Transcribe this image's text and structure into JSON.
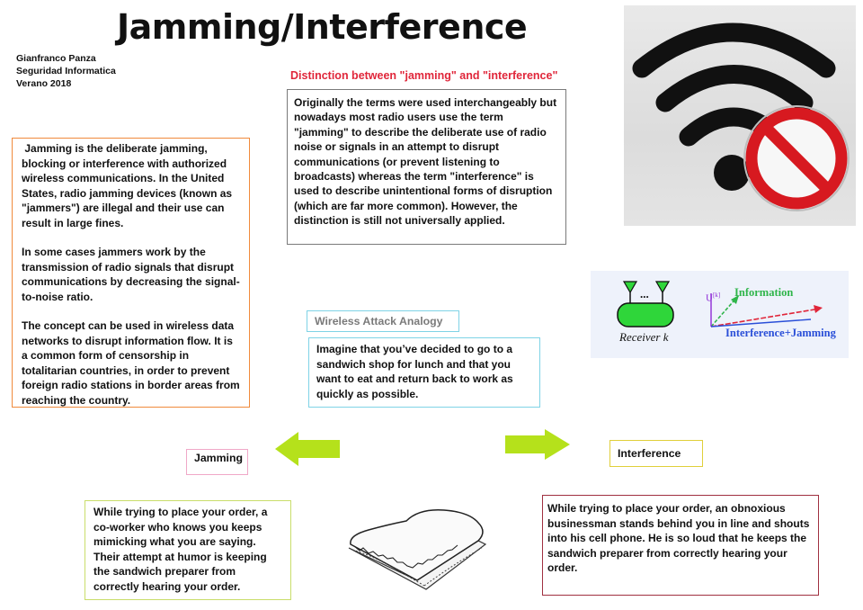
{
  "title": "Jamming/Interference",
  "author": {
    "name": "Gianfranco Panza",
    "course": "Seguridad Informatica",
    "term": "Verano 2018"
  },
  "jamming_definition": {
    "paragraphs": [
      " Jamming is the deliberate jamming, blocking or interference with authorized wireless communications. In the United States, radio jamming devices (known as \"jammers\") are illegal and their use can result in large fines.",
      "In some cases jammers work by the transmission of radio signals that disrupt communications by decreasing the signal-to-noise ratio.",
      "The concept can be used in wireless data networks to disrupt information flow. It is a common form of censorship in totalitarian countries, in order to prevent foreign radio stations in border areas from reaching the country."
    ]
  },
  "distinction": {
    "heading": "Distinction between \"jamming\" and \"interference\"",
    "body": "Originally the terms were used interchangeably but nowadays most radio users use the term \"jamming\" to describe the deliberate use of radio noise or signals in an attempt to disrupt communications (or prevent listening to broadcasts) whereas the term \"interference\" is used to describe unintentional forms of disruption (which are far more common). However, the distinction is still not universally applied."
  },
  "analogy": {
    "label": "Wireless Attack Analogy",
    "body": "Imagine that you’ve decided to go to a sandwich shop for lunch and that you want to eat and return back to work as quickly as possible."
  },
  "jamming_example": {
    "label": "Jamming",
    "body": "While trying to place your order, a co-worker who knows you keeps mimicking what you are saying. Their attempt at humor is keeping the sandwich preparer from correctly hearing your order."
  },
  "interference_example": {
    "label": "Interference",
    "body": "While trying to place your order, an obnoxious businessman stands behind you in line and shouts into his cell phone. He is so loud that he keeps the sandwich preparer from correctly hearing your order."
  },
  "diagram": {
    "receiver_label": "Receiver k",
    "receiver_dots": "...",
    "axis_label": "U",
    "axis_superscript": "[k]",
    "information_label": "Information",
    "interference_label": "Interference+Jamming"
  },
  "colors": {
    "orange_border": "#f08a3c",
    "gray_border": "#7a7a7a",
    "cyan_border": "#7fd3e6",
    "pink_border": "#f0a8c8",
    "yellow_border": "#e0cf3a",
    "olive_border": "#c9dd6a",
    "maroon_border": "#a03040",
    "arrow_green": "#b5e11b",
    "heading_red": "#e0263a",
    "receiver_green": "#2fd63a",
    "diagram_bg": "#eef2fb"
  },
  "icons": {
    "no_wifi": "no-wifi-icon",
    "sandwich": "sandwich-icon",
    "left_arrow": "left-arrow-icon",
    "right_arrow": "right-arrow-icon"
  }
}
